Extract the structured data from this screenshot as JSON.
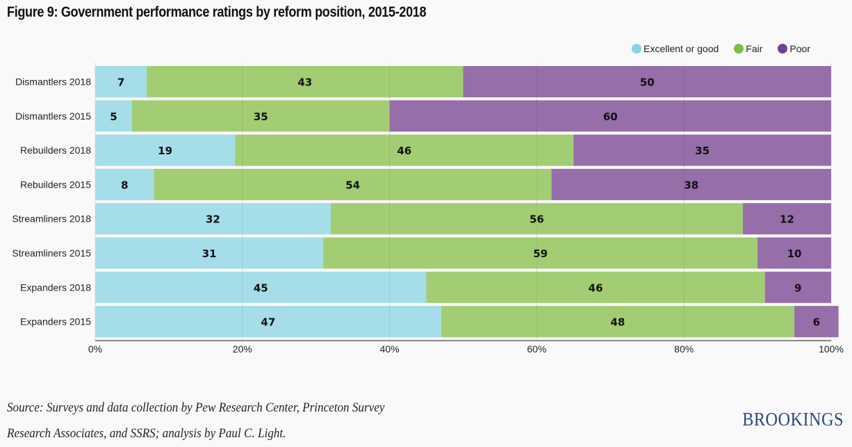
{
  "chart_data": {
    "type": "bar",
    "orientation": "horizontal",
    "stacked": true,
    "title": "Figure 9: Government performance ratings by reform position, 2015-2018",
    "categories": [
      "Dismantlers 2018",
      "Dismantlers 2015",
      "Rebuilders 2018",
      "Rebuilders 2015",
      "Streamliners 2018",
      "Streamliners 2015",
      "Expanders 2018",
      "Expanders 2015"
    ],
    "series": [
      {
        "name": "Excellent or good",
        "color": "#a3dce8",
        "legend_color": "#87d3e4",
        "values": [
          7,
          5,
          19,
          8,
          32,
          31,
          45,
          47
        ]
      },
      {
        "name": "Fair",
        "color": "#a0cc6f",
        "legend_color": "#80bd43",
        "values": [
          43,
          35,
          46,
          54,
          56,
          59,
          46,
          48
        ]
      },
      {
        "name": "Poor",
        "color": "#936ba8",
        "legend_color": "#73408f",
        "values": [
          50,
          60,
          35,
          38,
          12,
          10,
          9,
          6
        ]
      }
    ],
    "xlabel": "",
    "ylabel": "",
    "xlim": [
      0,
      100
    ],
    "xticks": [
      "0%",
      "20%",
      "40%",
      "60%",
      "80%",
      "100%"
    ],
    "xtick_values": [
      0,
      20,
      40,
      60,
      80,
      100
    ],
    "grid": true,
    "legend_position": "top-right",
    "data_labels": true
  },
  "footer": {
    "source_line1": "Source: Surveys and data collection by Pew Research Center, Princeton Survey",
    "source_line2": "Research Associates, and SSRS; analysis by Paul C. Light.",
    "logo": "BROOKINGS"
  }
}
